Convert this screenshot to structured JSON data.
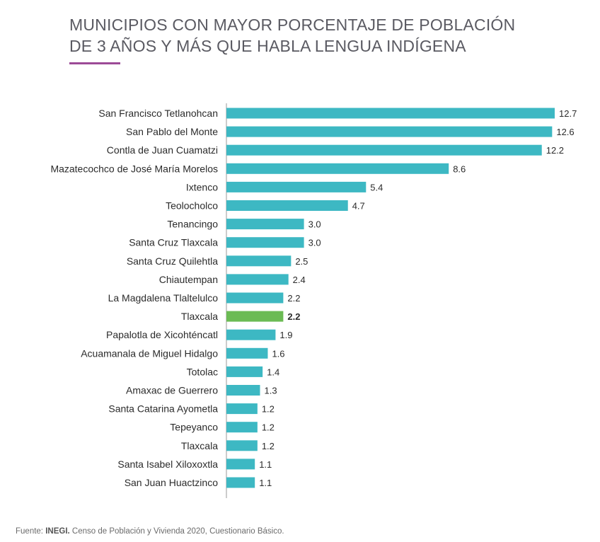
{
  "title_line1": "MUNICIPIOS CON MAYOR PORCENTAJE DE POBLACIÓN",
  "title_line2": "DE 3 AÑOS Y MÁS QUE HABLA LENGUA INDÍGENA",
  "source": {
    "prefix": "Fuente:",
    "org": "INEGI.",
    "text": "Censo de Población y Vivienda 2020, Cuestionario Básico."
  },
  "colors": {
    "bar": "#3db8c3",
    "highlight": "#6bbb54",
    "title": "#5a5a62",
    "accent": "#9c4a97"
  },
  "chart_data": {
    "type": "bar",
    "orientation": "horizontal",
    "title": "MUNICIPIOS CON MAYOR PORCENTAJE DE POBLACIÓN DE 3 AÑOS Y MÁS QUE HABLA LENGUA INDÍGENA",
    "categories": [
      "San Francisco Tetlanohcan",
      "San Pablo del Monte",
      "Contla de Juan Cuamatzi",
      "Mazatecochco de José María Morelos",
      "Ixtenco",
      "Teolocholco",
      "Tenancingo",
      "Santa Cruz Tlaxcala",
      "Santa Cruz Quilehtla",
      "Chiautempan",
      "La Magdalena Tlaltelulco",
      "Tlaxcala",
      "Papalotla de Xicohténcatl",
      "Acuamanala de Miguel Hidalgo",
      "Totolac",
      "Amaxac de Guerrero",
      "Santa Catarina Ayometla",
      "Tepeyanco",
      "Tlaxcala",
      "Santa Isabel Xiloxoxtla",
      "San Juan Huactzinco"
    ],
    "values": [
      12.7,
      12.6,
      12.2,
      8.6,
      5.4,
      4.7,
      3.0,
      3.0,
      2.5,
      2.4,
      2.2,
      2.2,
      1.9,
      1.6,
      1.4,
      1.3,
      1.2,
      1.2,
      1.2,
      1.1,
      1.1
    ],
    "value_labels": [
      "12.7",
      "12.6",
      "12.2",
      "8.6",
      "5.4",
      "4.7",
      "3.0",
      "3.0",
      "2.5",
      "2.4",
      "2.2",
      "2.2",
      "1.9",
      "1.6",
      "1.4",
      "1.3",
      "1.2",
      "1.2",
      "1.2",
      "1.1",
      "1.1"
    ],
    "highlight_index": 11,
    "xlim": [
      0,
      12.7
    ],
    "grid": false,
    "legend": "none"
  }
}
